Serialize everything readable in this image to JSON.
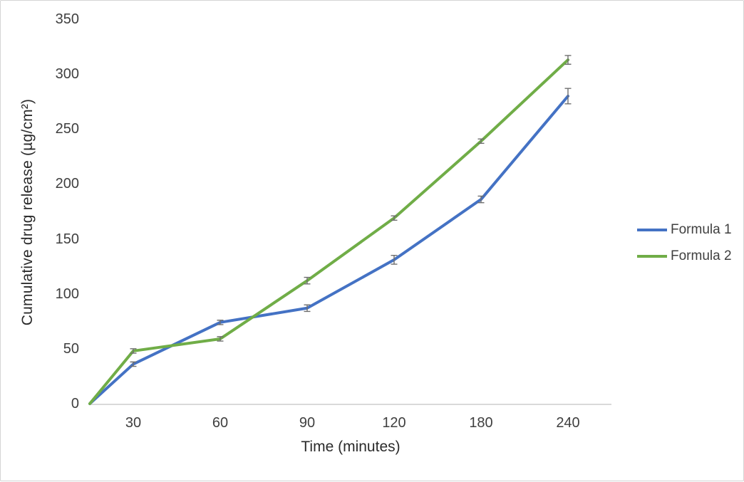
{
  "chart_data": {
    "type": "line",
    "x": [
      0,
      30,
      60,
      90,
      120,
      180,
      240
    ],
    "x_tick_labels": [
      "30",
      "60",
      "90",
      "120",
      "180",
      "240"
    ],
    "series": [
      {
        "name": "Formula 1",
        "color": "#4472C4",
        "values": [
          0,
          36,
          74,
          87,
          131,
          186,
          280
        ],
        "error": [
          0,
          2,
          2,
          3,
          4,
          3,
          7
        ]
      },
      {
        "name": "Formula 2",
        "color": "#70AD47",
        "values": [
          0,
          48,
          59,
          112,
          169,
          239,
          313
        ],
        "error": [
          0,
          2,
          2,
          3,
          2,
          2,
          4
        ]
      }
    ],
    "title": "",
    "xlabel": "Time (minutes)",
    "ylabel": "Cumulative drug release (µg/cm²)",
    "ylim": [
      0,
      350
    ],
    "yticks": [
      0,
      50,
      100,
      150,
      200,
      250,
      300,
      350
    ],
    "grid": false,
    "legend_position": "right",
    "error_bar_color": "#6e6e6e",
    "axis_line_color": "#d9d9d9"
  }
}
